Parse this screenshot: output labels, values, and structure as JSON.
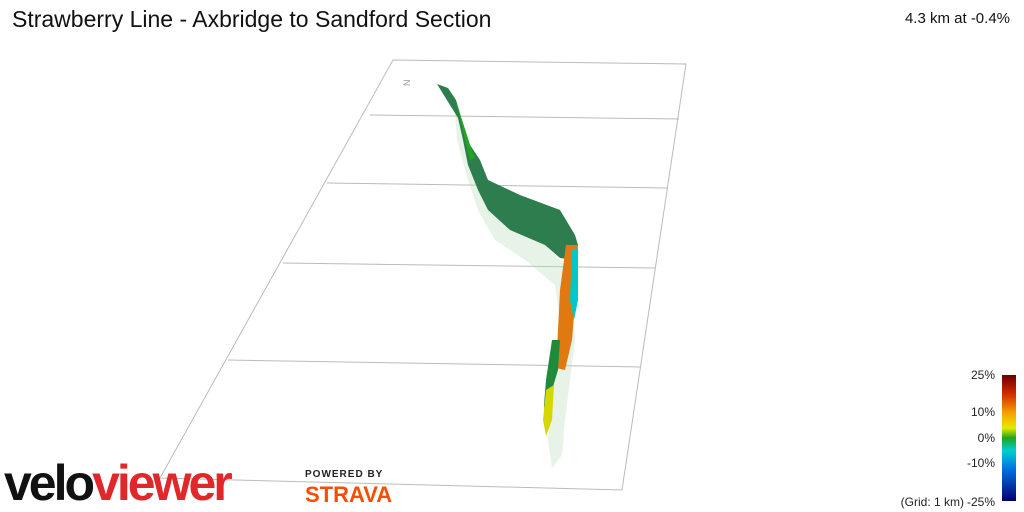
{
  "header": {
    "title": "Strawberry Line - Axbridge to Sandford Section",
    "summary": "4.3 km at -0.4%"
  },
  "compass": "N",
  "legend": {
    "ticks": [
      "25%",
      "10%",
      "0%",
      "-10%",
      "-25%"
    ],
    "grid_note": "(Grid: 1 km)"
  },
  "branding": {
    "logo_first": "velo",
    "logo_second": "viewer",
    "powered_by": "POWERED BY",
    "strava": "STRAVA"
  }
}
